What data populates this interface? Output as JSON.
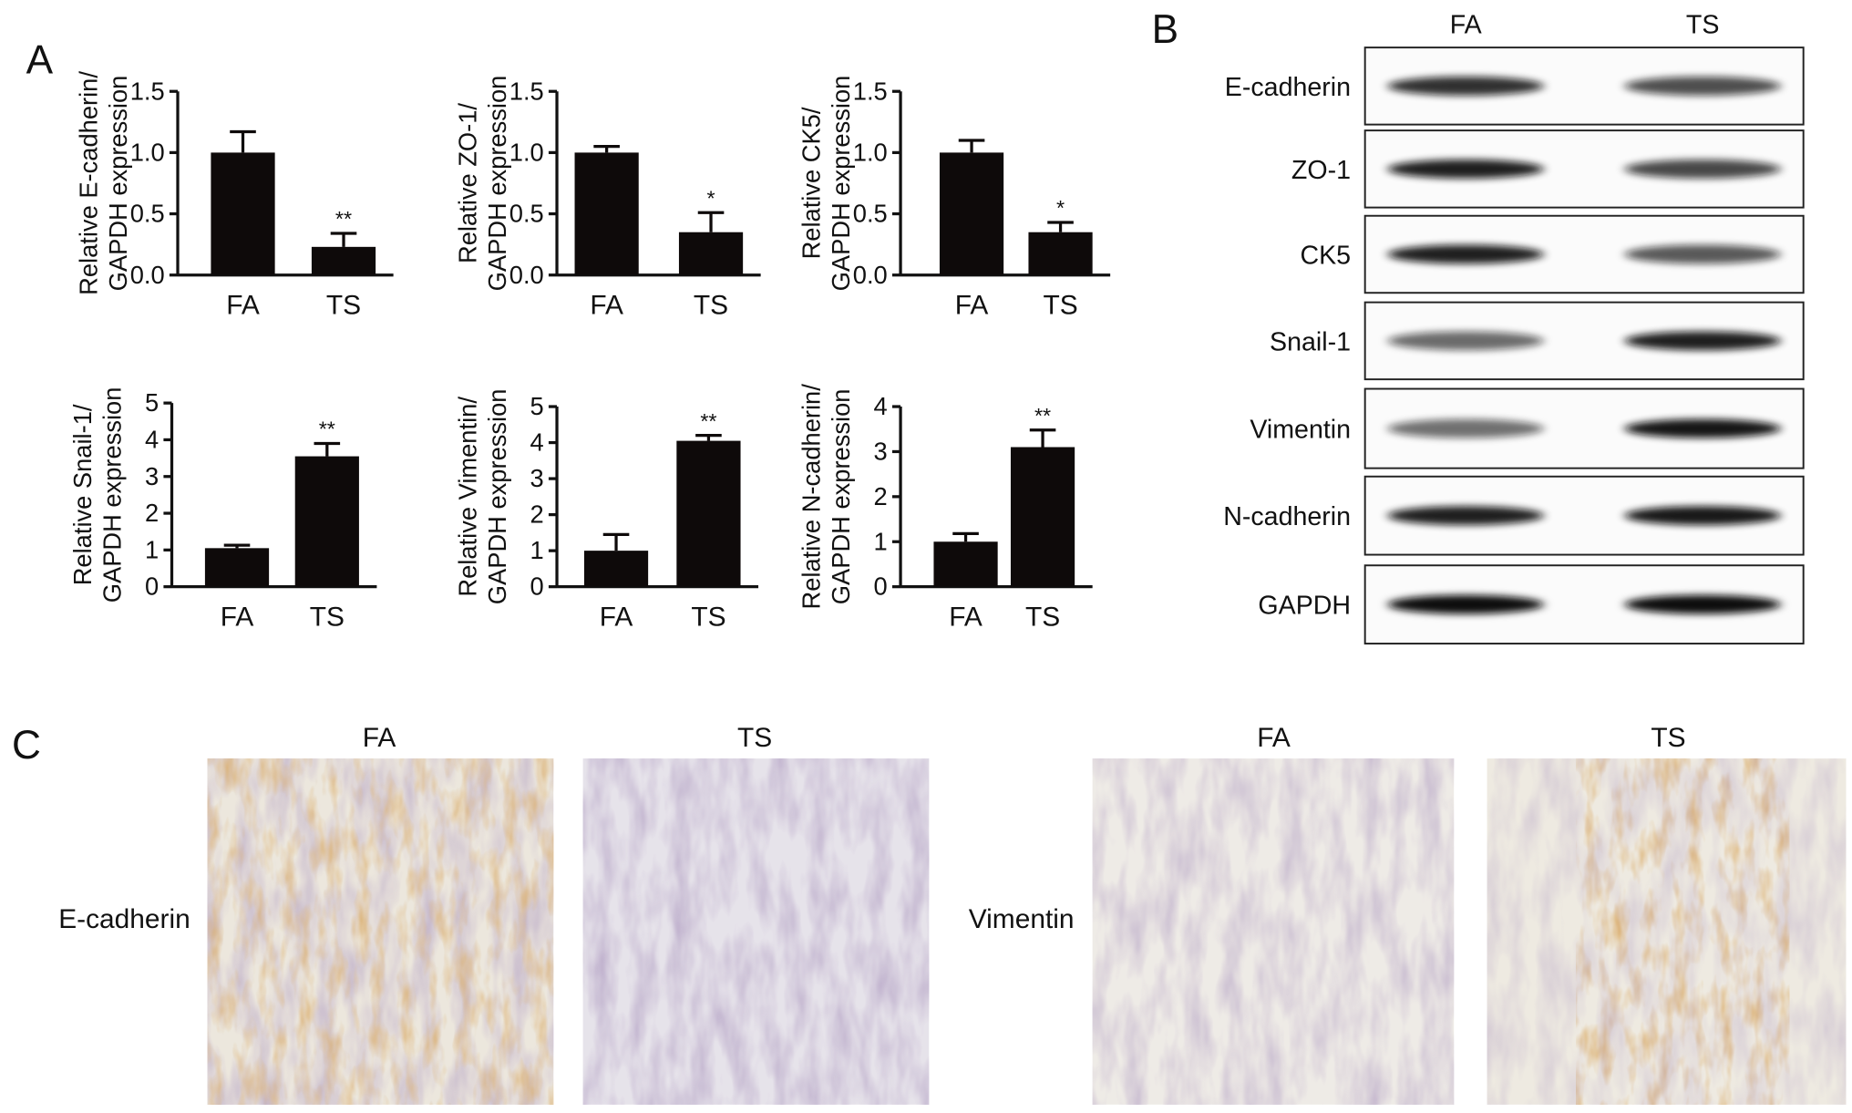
{
  "panel_labels": [
    "A",
    "B",
    "C"
  ],
  "chart_data": [
    {
      "type": "bar",
      "ylabel": [
        "Relative E-cadherin/",
        "GAPDH expression"
      ],
      "categories": [
        "FA",
        "TS"
      ],
      "values": [
        1.0,
        0.23
      ],
      "errors": [
        0.17,
        0.11
      ],
      "annotations": [
        null,
        "**"
      ],
      "color": "#0e0a0a",
      "ylim": [
        0,
        1.5
      ],
      "yticks": [
        {
          "value": 0,
          "label": "0.0"
        },
        0.5,
        {
          "value": 1,
          "label": "1.0"
        },
        1.5
      ]
    },
    {
      "type": "bar",
      "ylabel": [
        "Relative ZO-1/",
        "GAPDH expression"
      ],
      "categories": [
        "FA",
        "TS"
      ],
      "values": [
        1.0,
        0.35
      ],
      "errors": [
        0.05,
        0.16
      ],
      "annotations": [
        null,
        "*"
      ],
      "color": "#0e0a0a",
      "ylim": [
        0,
        1.5
      ],
      "yticks": [
        {
          "value": 0,
          "label": "0.0"
        },
        0.5,
        {
          "value": 1,
          "label": "1.0"
        },
        1.5
      ]
    },
    {
      "type": "bar",
      "ylabel": [
        "Relative CK5/",
        "GAPDH expression"
      ],
      "categories": [
        "FA",
        "TS"
      ],
      "values": [
        1.0,
        0.35
      ],
      "errors": [
        0.1,
        0.08
      ],
      "annotations": [
        null,
        "*"
      ],
      "color": "#0e0a0a",
      "ylim": [
        0,
        1.5
      ],
      "yticks": [
        {
          "value": 0,
          "label": "0.0"
        },
        0.5,
        {
          "value": 1,
          "label": "1.0"
        },
        1.5
      ]
    },
    {
      "type": "bar",
      "ylabel": [
        "Relative Snail-1/",
        "GAPDH expression"
      ],
      "categories": [
        "FA",
        "TS"
      ],
      "values": [
        1.05,
        3.55
      ],
      "errors": [
        0.08,
        0.35
      ],
      "annotations": [
        null,
        "**"
      ],
      "color": "#0e0a0a",
      "ylim": [
        0,
        5
      ],
      "yticks": [
        0,
        1,
        2,
        3,
        4,
        5
      ]
    },
    {
      "type": "bar",
      "ylabel": [
        "Relative Vimentin/",
        "GAPDH expression"
      ],
      "categories": [
        "FA",
        "TS"
      ],
      "values": [
        1.0,
        4.05
      ],
      "errors": [
        0.45,
        0.15
      ],
      "annotations": [
        null,
        "**"
      ],
      "color": "#0e0a0a",
      "ylim": [
        0,
        5
      ],
      "yticks": [
        0,
        1,
        2,
        3,
        4,
        5
      ]
    },
    {
      "type": "bar",
      "ylabel": [
        "Relative N-cadherin/",
        "GAPDH expression"
      ],
      "categories": [
        "FA",
        "TS"
      ],
      "values": [
        1.0,
        3.1
      ],
      "errors": [
        0.18,
        0.38
      ],
      "annotations": [
        null,
        "**"
      ],
      "color": "#0e0a0a",
      "ylim": [
        0,
        4
      ],
      "yticks": [
        0,
        1,
        2,
        3,
        4
      ]
    }
  ],
  "western_blot": {
    "columns": [
      "FA",
      "TS"
    ],
    "rows": [
      "E-cadherin",
      "ZO-1",
      "CK5",
      "Snail-1",
      "Vimentin",
      "N-cadherin",
      "GAPDH"
    ]
  },
  "histology": {
    "columns": [
      "FA",
      "TS",
      "FA",
      "TS"
    ],
    "rows": [
      "E-cadherin",
      "Vimentin"
    ]
  }
}
